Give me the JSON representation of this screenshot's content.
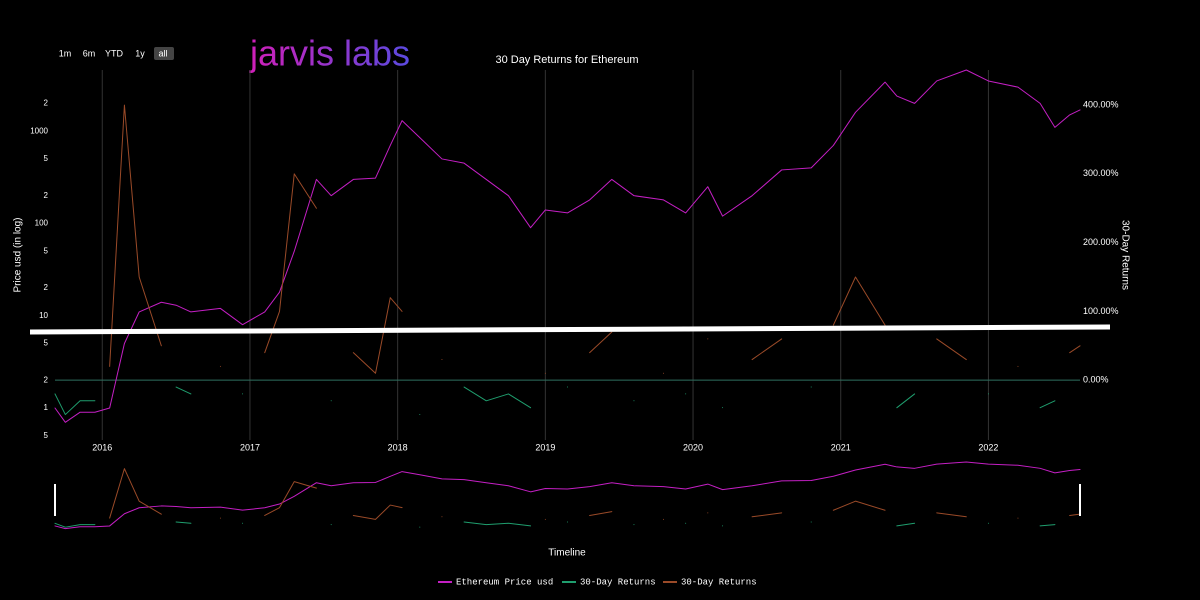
{
  "range_buttons": [
    "1m",
    "6m",
    "YTD",
    "1y",
    "all"
  ],
  "logo": "jarvis labs",
  "chart_data": {
    "type": "line",
    "title": "30 Day Returns for Ethereum",
    "y_label": "Price usd (in log)",
    "y2_label": "30-Day Returns",
    "x_label": "Timeline",
    "ylog": true,
    "x": [
      2015.68,
      2015.75,
      2015.85,
      2015.95,
      2016.05,
      2016.15,
      2016.25,
      2016.4,
      2016.5,
      2016.6,
      2016.8,
      2016.95,
      2017.1,
      2017.2,
      2017.3,
      2017.45,
      2017.55,
      2017.7,
      2017.85,
      2017.95,
      2018.03,
      2018.15,
      2018.3,
      2018.45,
      2018.6,
      2018.75,
      2018.9,
      2019.0,
      2019.15,
      2019.3,
      2019.45,
      2019.6,
      2019.8,
      2019.95,
      2020.1,
      2020.2,
      2020.4,
      2020.6,
      2020.8,
      2020.95,
      2021.1,
      2021.3,
      2021.38,
      2021.5,
      2021.65,
      2021.85,
      2022.0,
      2022.2,
      2022.35,
      2022.45,
      2022.55,
      2022.62
    ],
    "xlim": [
      2015.68,
      2022.62
    ],
    "xticks": [
      2016,
      2017,
      2018,
      2019,
      2020,
      2021,
      2022
    ],
    "ylim": [
      0.45,
      4600
    ],
    "yticks": [
      {
        "value": 0.5,
        "label": "5"
      },
      1,
      2,
      5,
      10,
      {
        "value": 20,
        "label": "2"
      },
      {
        "value": 50,
        "label": "5"
      },
      100,
      {
        "value": 200,
        "label": "2"
      },
      {
        "value": 500,
        "label": "5"
      },
      1000,
      {
        "value": 2000,
        "label": "2"
      }
    ],
    "y2lim": [
      -87,
      451
    ],
    "y2ticks": [
      {
        "value": 0,
        "label": "0.00%"
      },
      {
        "value": 100,
        "label": "100.00%"
      },
      {
        "value": 200,
        "label": "200.00%"
      },
      {
        "value": 300,
        "label": "300.00%"
      },
      {
        "value": 400,
        "label": "400.00%"
      }
    ],
    "series": [
      {
        "name": "Ethereum Price usd",
        "color": "#c41fc4",
        "values": [
          1.0,
          0.7,
          0.9,
          0.9,
          1.0,
          5,
          11,
          14,
          13,
          11,
          12,
          8,
          11,
          18,
          50,
          300,
          200,
          300,
          310,
          700,
          1300,
          850,
          500,
          450,
          300,
          200,
          90,
          140,
          130,
          180,
          300,
          200,
          180,
          130,
          250,
          120,
          200,
          380,
          400,
          700,
          1600,
          3400,
          2400,
          2000,
          3500,
          4600,
          3500,
          3000,
          2000,
          1100,
          1500,
          1700
        ]
      },
      {
        "name": "30-Day Returns",
        "color": "#1f9e6e",
        "axis": "y2",
        "values": [
          -20,
          -50,
          -30,
          -30,
          null,
          null,
          null,
          null,
          -10,
          -20,
          null,
          -20,
          null,
          null,
          null,
          null,
          -30,
          null,
          null,
          null,
          null,
          -50,
          null,
          -10,
          -30,
          -20,
          -40,
          null,
          -10,
          null,
          null,
          -30,
          null,
          -20,
          null,
          -40,
          null,
          null,
          -10,
          null,
          null,
          null,
          -40,
          -20,
          null,
          null,
          -20,
          null,
          -40,
          -30,
          null,
          null
        ]
      },
      {
        "name": "30-Day Returns",
        "color": "#9a4a28",
        "axis": "y2",
        "values": [
          null,
          null,
          null,
          null,
          20,
          400,
          150,
          50,
          null,
          null,
          20,
          null,
          40,
          100,
          300,
          250,
          null,
          40,
          10,
          120,
          100,
          null,
          30,
          null,
          null,
          null,
          null,
          10,
          null,
          40,
          70,
          null,
          10,
          null,
          60,
          null,
          30,
          60,
          null,
          80,
          150,
          80,
          null,
          null,
          60,
          30,
          null,
          20,
          null,
          null,
          40,
          50
        ]
      }
    ]
  }
}
